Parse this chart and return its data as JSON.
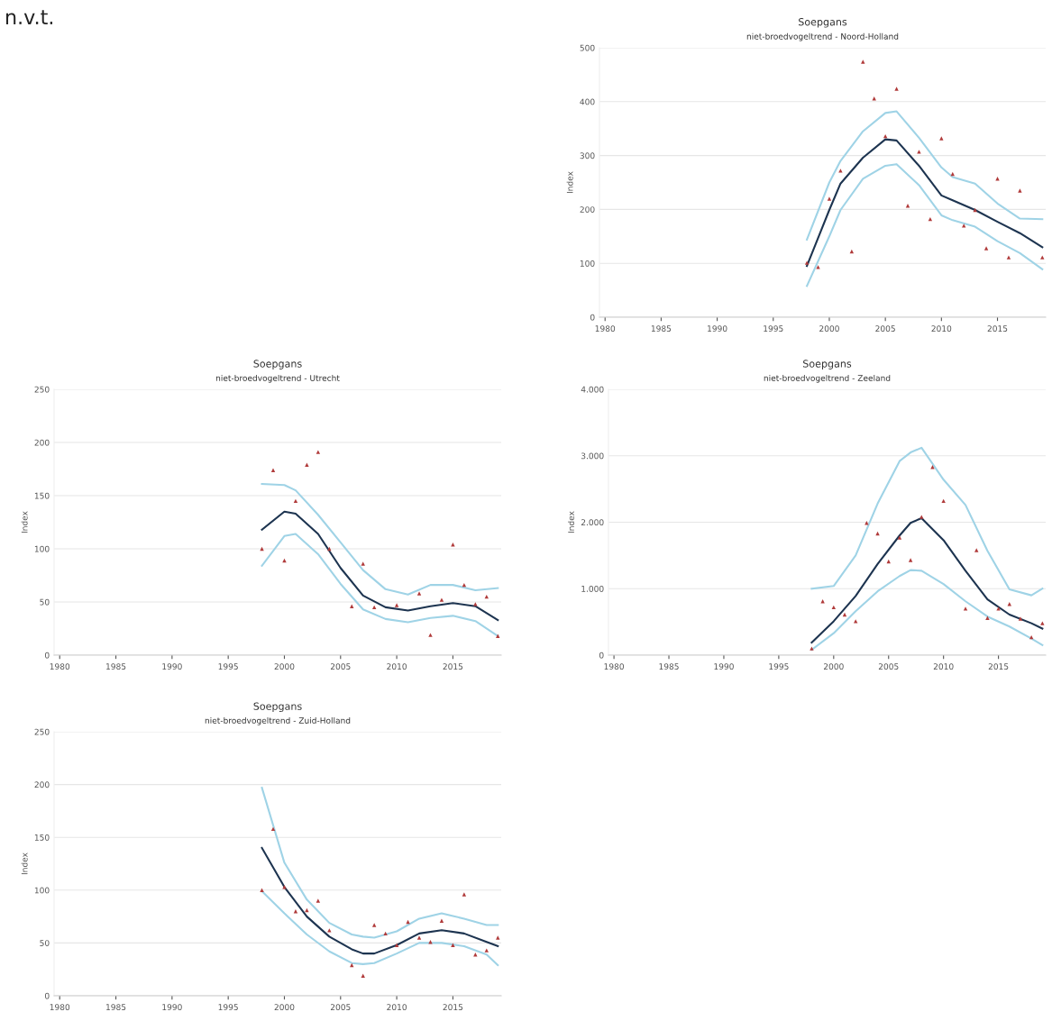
{
  "chart_data": [
    {
      "type": "other",
      "title": "n.v.t."
    },
    {
      "type": "line",
      "title": "Soepgans",
      "subtitle": "niet-broedvogeltrend - Noord-Holland",
      "ylabel": "Index",
      "xlim": [
        1979.5,
        2019.3
      ],
      "xticks": [
        1980,
        1985,
        1990,
        1995,
        2000,
        2005,
        2010,
        2015
      ],
      "ylim": [
        0,
        500
      ],
      "yticks": [
        0,
        100,
        200,
        300,
        400,
        500
      ],
      "grid": "y",
      "legend": false,
      "series": [
        {
          "type": "line",
          "color": "#9fd3e6",
          "x": [
            1998,
            2000,
            2001,
            2003,
            2005,
            2006,
            2008,
            2010,
            2011,
            2013,
            2015,
            2017,
            2019
          ],
          "values": [
            144,
            250,
            290,
            345,
            379,
            382,
            333,
            278,
            260,
            248,
            211,
            183,
            182
          ]
        },
        {
          "type": "line",
          "color": "#9fd3e6",
          "x": [
            1998,
            2000,
            2001,
            2003,
            2005,
            2006,
            2008,
            2010,
            2011,
            2013,
            2015,
            2017,
            2019
          ],
          "values": [
            58,
            150,
            199,
            257,
            281,
            284,
            245,
            189,
            180,
            168,
            141,
            119,
            89
          ]
        },
        {
          "type": "line",
          "color": "#1d3450",
          "x": [
            1998,
            2000,
            2001,
            2003,
            2005,
            2006,
            2008,
            2010,
            2011,
            2013,
            2015,
            2017,
            2019
          ],
          "values": [
            95,
            199,
            248,
            296,
            330,
            328,
            281,
            226,
            217,
            199,
            177,
            156,
            130
          ]
        },
        {
          "type": "scatter",
          "color": "#b03a3a",
          "marker": "triangle",
          "x": [
            1998,
            1999,
            2000,
            2001,
            2002,
            2003,
            2004,
            2005,
            2006,
            2007,
            2008,
            2009,
            2010,
            2011,
            2012,
            2013,
            2014,
            2015,
            2016,
            2017,
            2018,
            2019
          ],
          "values": [
            101,
            93,
            220,
            272,
            122,
            474,
            406,
            336,
            424,
            207,
            307,
            182,
            332,
            266,
            170,
            199,
            128,
            257,
            111,
            235,
            null,
            111
          ]
        }
      ]
    },
    {
      "type": "line",
      "title": "Soepgans",
      "subtitle": "niet-broedvogeltrend - Utrecht",
      "ylabel": "Index",
      "xlim": [
        1979.5,
        2019.3
      ],
      "xticks": [
        1980,
        1985,
        1990,
        1995,
        2000,
        2005,
        2010,
        2015
      ],
      "ylim": [
        0,
        250
      ],
      "yticks": [
        0,
        50,
        100,
        150,
        200,
        250
      ],
      "grid": "y",
      "legend": false,
      "series": [
        {
          "type": "line",
          "color": "#9fd3e6",
          "x": [
            1998,
            2000,
            2001,
            2003,
            2005,
            2007,
            2009,
            2011,
            2013,
            2015,
            2017,
            2019
          ],
          "values": [
            161,
            160,
            155,
            132,
            106,
            80,
            62,
            57,
            66,
            66,
            61,
            63
          ]
        },
        {
          "type": "line",
          "color": "#9fd3e6",
          "x": [
            1998,
            2000,
            2001,
            2003,
            2005,
            2007,
            2009,
            2011,
            2013,
            2015,
            2017,
            2019
          ],
          "values": [
            84,
            112,
            114,
            95,
            67,
            43,
            34,
            31,
            35,
            37,
            32,
            18
          ]
        },
        {
          "type": "line",
          "color": "#1d3450",
          "x": [
            1998,
            2000,
            2001,
            2003,
            2005,
            2007,
            2009,
            2011,
            2013,
            2015,
            2017,
            2019
          ],
          "values": [
            118,
            135,
            133,
            114,
            82,
            56,
            45,
            42,
            46,
            49,
            46,
            33
          ]
        },
        {
          "type": "scatter",
          "color": "#b03a3a",
          "marker": "triangle",
          "x": [
            1998,
            1999,
            2000,
            2001,
            2002,
            2003,
            2004,
            2005,
            2006,
            2007,
            2008,
            2009,
            2010,
            2011,
            2012,
            2013,
            2014,
            2015,
            2016,
            2017,
            2018,
            2019
          ],
          "values": [
            100,
            174,
            89,
            145,
            179,
            191,
            100,
            null,
            46,
            86,
            45,
            null,
            47,
            null,
            58,
            19,
            52,
            104,
            66,
            48,
            55,
            18
          ]
        }
      ]
    },
    {
      "type": "line",
      "title": "Soepgans",
      "subtitle": "niet-broedvogeltrend - Zeeland",
      "ylabel": "Index",
      "xlim": [
        1979.5,
        2019.3
      ],
      "xticks": [
        1980,
        1985,
        1990,
        1995,
        2000,
        2005,
        2010,
        2015
      ],
      "ylim": [
        0,
        4000
      ],
      "yticks": [
        0,
        {
          "value": 1000,
          "label": "1.000"
        },
        {
          "value": 2000,
          "label": "2.000"
        },
        {
          "value": 3000,
          "label": "3.000"
        },
        {
          "value": 4000,
          "label": "4.000"
        }
      ],
      "grid": "y",
      "legend": false,
      "series": [
        {
          "type": "line",
          "color": "#9fd3e6",
          "x": [
            1998,
            2000,
            2002,
            2004,
            2006,
            2007,
            2008,
            2010,
            2012,
            2014,
            2016,
            2018,
            2019
          ],
          "values": [
            1000,
            1040,
            1500,
            2280,
            2920,
            3050,
            3120,
            2640,
            2260,
            1570,
            990,
            900,
            1000
          ]
        },
        {
          "type": "line",
          "color": "#9fd3e6",
          "x": [
            1998,
            2000,
            2002,
            2004,
            2006,
            2007,
            2008,
            2010,
            2012,
            2014,
            2016,
            2018,
            2019
          ],
          "values": [
            80,
            330,
            660,
            960,
            1190,
            1280,
            1270,
            1070,
            810,
            580,
            430,
            250,
            150
          ]
        },
        {
          "type": "line",
          "color": "#1d3450",
          "x": [
            1998,
            2000,
            2002,
            2004,
            2006,
            2007,
            2008,
            2010,
            2012,
            2014,
            2016,
            2018,
            2019
          ],
          "values": [
            190,
            510,
            890,
            1370,
            1800,
            1990,
            2060,
            1730,
            1270,
            840,
            610,
            480,
            400
          ]
        },
        {
          "type": "scatter",
          "color": "#b03a3a",
          "marker": "triangle",
          "x": [
            1998,
            1999,
            2000,
            2001,
            2002,
            2003,
            2004,
            2005,
            2006,
            2007,
            2008,
            2009,
            2010,
            2011,
            2012,
            2013,
            2014,
            2015,
            2016,
            2017,
            2018,
            2019
          ],
          "values": [
            100,
            810,
            720,
            610,
            510,
            1990,
            1830,
            1410,
            1770,
            1430,
            2080,
            2830,
            2320,
            null,
            700,
            1580,
            560,
            700,
            770,
            550,
            270,
            480
          ]
        }
      ]
    },
    {
      "type": "line",
      "title": "Soepgans",
      "subtitle": "niet-broedvogeltrend - Zuid-Holland",
      "ylabel": "Index",
      "xlim": [
        1979.5,
        2019.3
      ],
      "xticks": [
        1980,
        1985,
        1990,
        1995,
        2000,
        2005,
        2010,
        2015
      ],
      "ylim": [
        0,
        250
      ],
      "yticks": [
        0,
        50,
        100,
        150,
        200,
        250
      ],
      "grid": "y",
      "legend": false,
      "series": [
        {
          "type": "line",
          "color": "#9fd3e6",
          "x": [
            1998,
            2000,
            2002,
            2004,
            2006,
            2007,
            2008,
            2010,
            2012,
            2014,
            2016,
            2018,
            2019
          ],
          "values": [
            197,
            126,
            91,
            69,
            58,
            56,
            55,
            61,
            73,
            78,
            73,
            67,
            67
          ]
        },
        {
          "type": "line",
          "color": "#9fd3e6",
          "x": [
            1998,
            2000,
            2002,
            2004,
            2006,
            2007,
            2008,
            2010,
            2012,
            2014,
            2016,
            2018,
            2019
          ],
          "values": [
            99,
            78,
            58,
            42,
            31,
            30,
            31,
            40,
            50,
            50,
            47,
            39,
            29
          ]
        },
        {
          "type": "line",
          "color": "#1d3450",
          "x": [
            1998,
            2000,
            2002,
            2004,
            2006,
            2007,
            2008,
            2010,
            2012,
            2014,
            2016,
            2018,
            2019
          ],
          "values": [
            140,
            103,
            75,
            56,
            44,
            40,
            40,
            48,
            59,
            62,
            59,
            51,
            47
          ]
        },
        {
          "type": "scatter",
          "color": "#b03a3a",
          "marker": "triangle",
          "x": [
            1998,
            1999,
            2000,
            2001,
            2002,
            2003,
            2004,
            2005,
            2006,
            2007,
            2008,
            2009,
            2010,
            2011,
            2012,
            2013,
            2014,
            2015,
            2016,
            2017,
            2018,
            2019
          ],
          "values": [
            100,
            158,
            103,
            80,
            81,
            90,
            62,
            null,
            29,
            19,
            67,
            59,
            48,
            70,
            55,
            51,
            71,
            48,
            96,
            39,
            43,
            55
          ]
        }
      ]
    }
  ]
}
